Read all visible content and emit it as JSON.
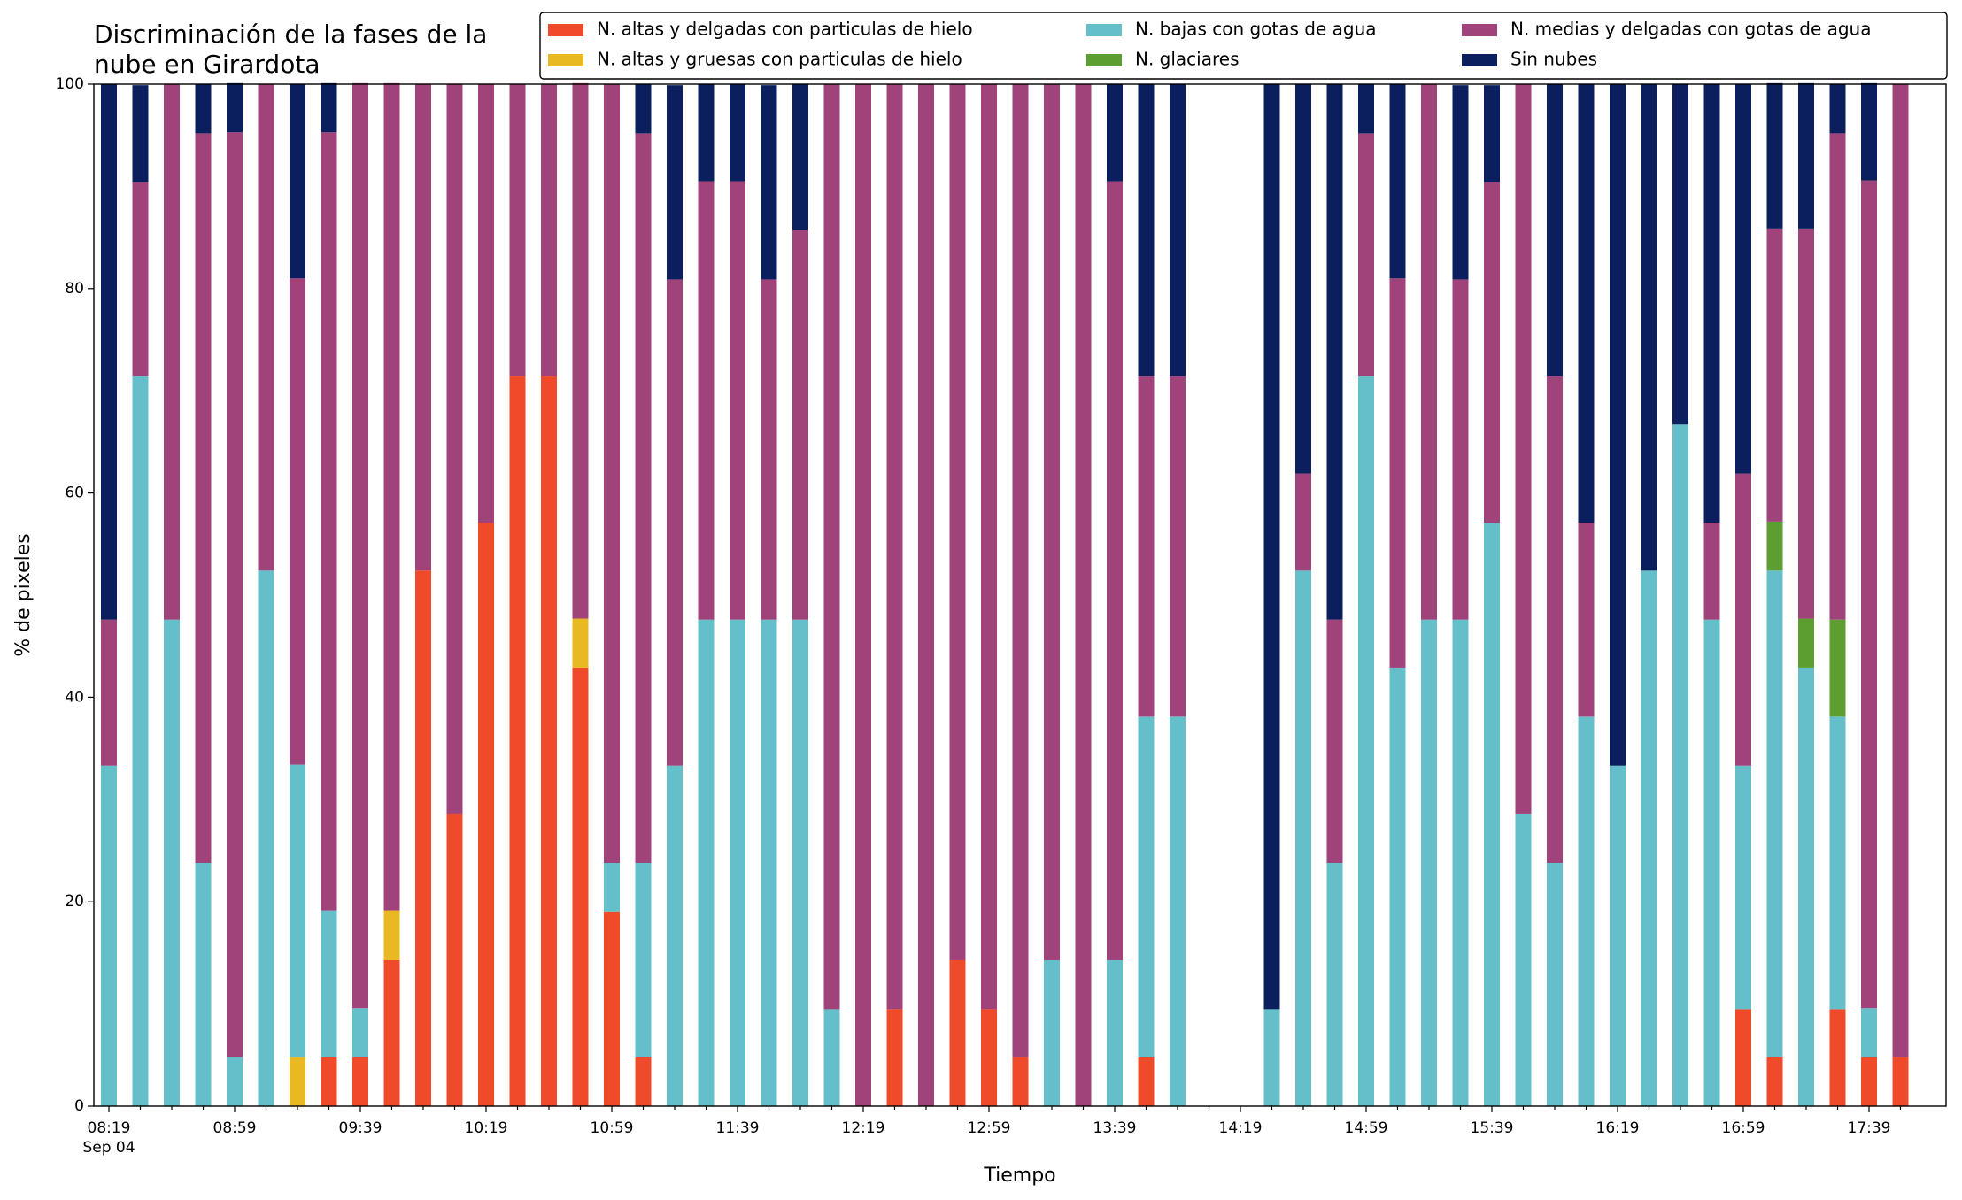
{
  "chart_data": {
    "type": "stacked_bar",
    "title": [
      "Discriminación de la fases de la",
      "nube en Girardota"
    ],
    "x_label": "Tiempo",
    "x_sublabel": "Sep 04",
    "y_label": "% de pixeles",
    "categories": [
      "08:19",
      null,
      null,
      null,
      "08:59",
      null,
      null,
      null,
      "09:39",
      null,
      null,
      null,
      "10:19",
      null,
      null,
      null,
      "10:59",
      null,
      null,
      null,
      "11:39",
      null,
      null,
      null,
      "12:19",
      null,
      null,
      null,
      "12:59",
      null,
      null,
      null,
      "13:39",
      null,
      null,
      null,
      "14:19",
      null,
      null,
      null,
      "14:59",
      null,
      null,
      null,
      "15:39",
      null,
      null,
      null,
      "16:19",
      null,
      null,
      null,
      "16:59",
      null,
      null,
      null,
      "17:39",
      null
    ],
    "ylim": [
      0,
      100
    ],
    "yticks": [
      0,
      20,
      40,
      60,
      80,
      100
    ],
    "grid": false,
    "legend": "top-right",
    "series": [
      {
        "name": "N. altas y delgadas con particulas de hielo",
        "color": "#ef4a2a",
        "values": [
          0,
          0,
          0,
          0,
          0,
          0,
          0,
          4.8,
          4.8,
          14.3,
          52.4,
          28.6,
          57.1,
          71.4,
          71.4,
          42.9,
          19,
          4.8,
          0,
          0,
          0,
          0,
          0,
          0,
          0,
          9.5,
          0,
          14.3,
          9.5,
          4.8,
          0,
          0,
          0,
          4.8,
          0,
          0,
          0,
          0,
          0,
          0,
          0,
          0,
          0,
          0,
          0,
          0,
          0,
          0,
          0,
          0,
          0,
          0,
          9.5,
          4.8,
          0,
          9.5,
          4.8,
          4.8
        ]
      },
      {
        "name": "N. altas y gruesas con particulas de hielo",
        "color": "#e8b922",
        "values": [
          0,
          0,
          0,
          0,
          0,
          0,
          4.8,
          0,
          0,
          4.8,
          0,
          0,
          0,
          0,
          0,
          4.8,
          0,
          0,
          0,
          0,
          0,
          0,
          0,
          0,
          0,
          0,
          0,
          0,
          0,
          0,
          0,
          0,
          0,
          0,
          0,
          0,
          0,
          0,
          0,
          0,
          0,
          0,
          0,
          0,
          0,
          0,
          0,
          0,
          0,
          0,
          0,
          0,
          0,
          0,
          0,
          0,
          0,
          0
        ]
      },
      {
        "name": "N. bajas con gotas de agua",
        "color": "#65bfca",
        "values": [
          33.3,
          71.4,
          47.6,
          23.8,
          4.8,
          52.4,
          28.6,
          14.3,
          4.8,
          0,
          0,
          0,
          0,
          0,
          0,
          0,
          4.8,
          19,
          33.3,
          47.6,
          47.6,
          47.6,
          47.6,
          9.5,
          0,
          0,
          0,
          0,
          0,
          0,
          14.3,
          0,
          14.3,
          33.3,
          38.1,
          0,
          0,
          9.5,
          52.4,
          23.8,
          71.4,
          42.9,
          47.6,
          47.6,
          57.1,
          28.6,
          23.8,
          38.1,
          33.3,
          52.4,
          66.7,
          47.6,
          23.8,
          47.6,
          42.9,
          28.6,
          4.8,
          0
        ]
      },
      {
        "name": "N. glaciares",
        "color": "#5c9e30",
        "values": [
          0,
          0,
          0,
          0,
          0,
          0,
          0,
          0,
          0,
          0,
          0,
          0,
          0,
          0,
          0,
          0,
          0,
          0,
          0,
          0,
          0,
          0,
          0,
          0,
          0,
          0,
          0,
          0,
          0,
          0,
          0,
          0,
          0,
          0,
          0,
          0,
          0,
          0,
          0,
          0,
          0,
          0,
          0,
          0,
          0,
          0,
          0,
          0,
          0,
          0,
          0,
          0,
          0,
          4.8,
          4.8,
          9.5,
          0,
          0
        ]
      },
      {
        "name": "N. medias y delgadas con gotas de agua",
        "color": "#a0437a",
        "values": [
          14.3,
          19,
          52.4,
          71.4,
          90.5,
          47.6,
          47.6,
          76.2,
          90.5,
          81,
          47.6,
          71.4,
          42.9,
          28.6,
          28.6,
          52.4,
          76.2,
          71.4,
          47.6,
          42.9,
          42.9,
          33.3,
          38.1,
          90.5,
          100,
          90.5,
          100,
          85.7,
          90.5,
          95.2,
          85.7,
          100,
          76.2,
          33.3,
          33.3,
          0,
          0,
          0,
          9.5,
          23.8,
          23.8,
          38.1,
          52.4,
          33.3,
          33.3,
          71.4,
          47.6,
          19,
          0,
          0,
          0,
          9.5,
          28.6,
          28.6,
          38.1,
          47.6,
          81,
          95.2
        ]
      },
      {
        "name": "Sin nubes",
        "color": "#0b1f5e",
        "values": [
          52.4,
          9.5,
          0,
          4.8,
          4.8,
          0,
          19,
          4.8,
          0,
          0,
          0,
          0,
          0,
          0,
          0,
          0,
          0,
          4.8,
          19,
          9.5,
          9.5,
          19,
          14.3,
          0,
          0,
          0,
          0,
          0,
          0,
          0,
          0,
          0,
          9.5,
          28.6,
          28.6,
          0,
          0,
          90.5,
          38.1,
          52.4,
          4.8,
          19,
          0,
          19,
          9.5,
          0,
          28.6,
          42.9,
          66.7,
          47.6,
          33.3,
          42.9,
          38.1,
          14.3,
          14.3,
          4.8,
          9.5,
          0
        ]
      }
    ]
  }
}
